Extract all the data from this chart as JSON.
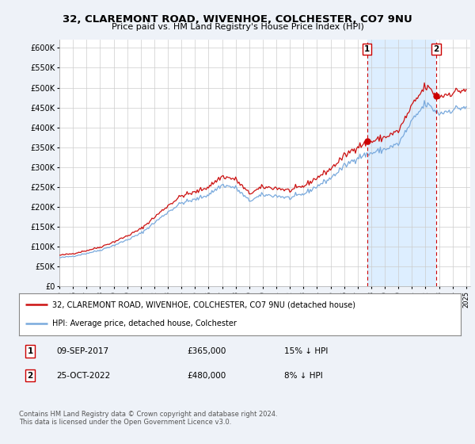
{
  "title": "32, CLAREMONT ROAD, WIVENHOE, COLCHESTER, CO7 9NU",
  "subtitle": "Price paid vs. HM Land Registry's House Price Index (HPI)",
  "legend_line1": "32, CLAREMONT ROAD, WIVENHOE, COLCHESTER, CO7 9NU (detached house)",
  "legend_line2": "HPI: Average price, detached house, Colchester",
  "footer": "Contains HM Land Registry data © Crown copyright and database right 2024.\nThis data is licensed under the Open Government Licence v3.0.",
  "ylim": [
    0,
    620000
  ],
  "yticks": [
    0,
    50000,
    100000,
    150000,
    200000,
    250000,
    300000,
    350000,
    400000,
    450000,
    500000,
    550000,
    600000
  ],
  "ytick_labels": [
    "£0",
    "£50K",
    "£100K",
    "£150K",
    "£200K",
    "£250K",
    "£300K",
    "£350K",
    "£400K",
    "£450K",
    "£500K",
    "£550K",
    "£600K"
  ],
  "hpi_color": "#7aaadd",
  "price_color": "#cc1111",
  "marker_color": "#cc0000",
  "highlight_color": "#ddeeff",
  "background_color": "#eef2f8",
  "plot_bg": "#ffffff",
  "marker1_x": 2017.69,
  "marker2_x": 2022.79,
  "marker1_price": 365000,
  "marker2_price": 480000,
  "sale1_date": "09-SEP-2017",
  "sale1_price": "£365,000",
  "sale1_note": "15% ↓ HPI",
  "sale2_date": "25-OCT-2022",
  "sale2_price": "£480,000",
  "sale2_note": "8% ↓ HPI",
  "xlim": [
    1995.0,
    2025.3
  ],
  "xticks": [
    1995,
    1996,
    1997,
    1998,
    1999,
    2000,
    2001,
    2002,
    2003,
    2004,
    2005,
    2006,
    2007,
    2008,
    2009,
    2010,
    2011,
    2012,
    2013,
    2014,
    2015,
    2016,
    2017,
    2018,
    2019,
    2020,
    2021,
    2022,
    2023,
    2024,
    2025
  ]
}
